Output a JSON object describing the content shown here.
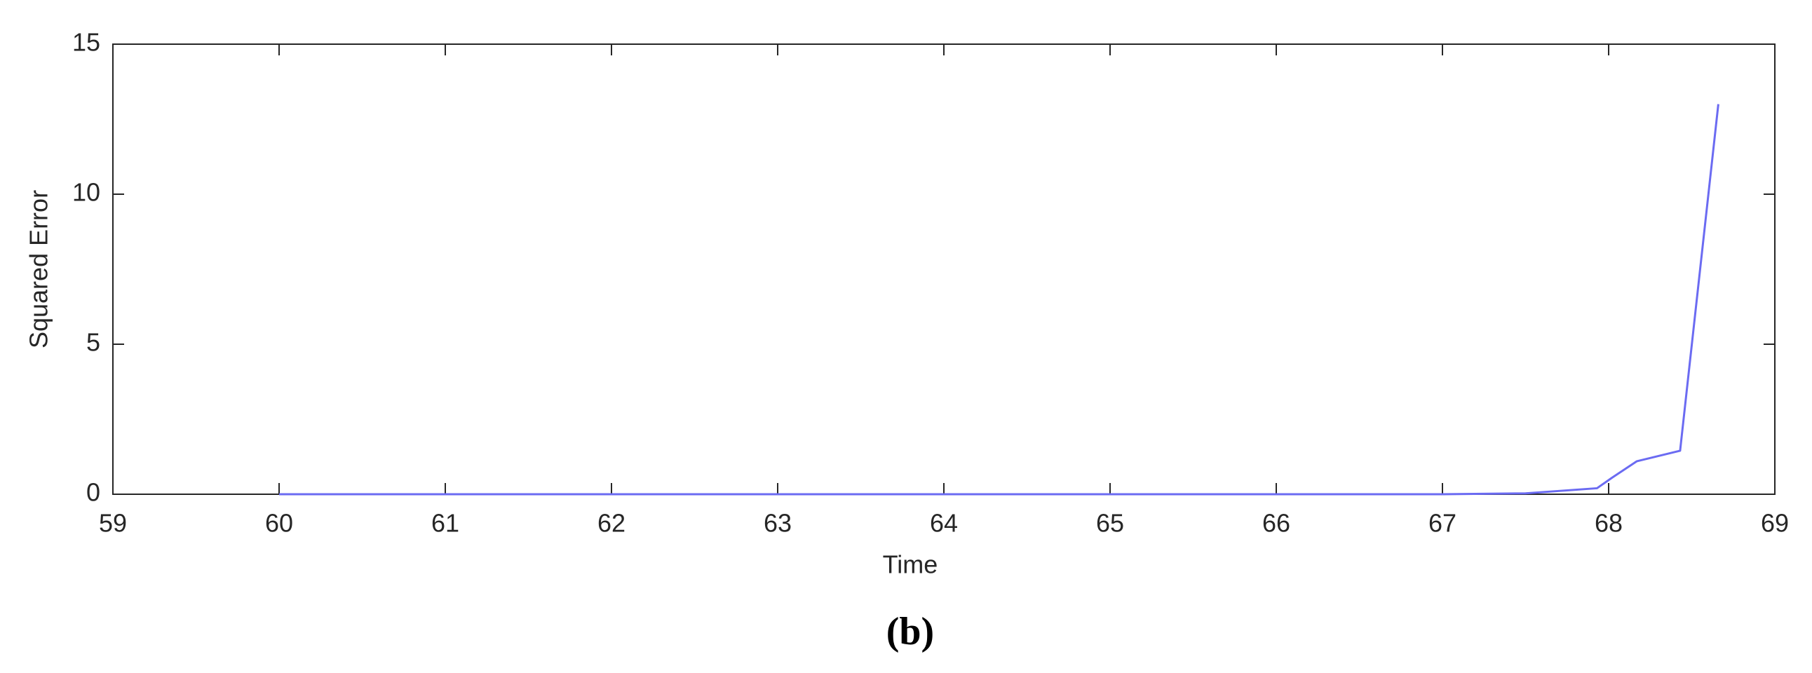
{
  "chart_data": {
    "type": "line",
    "x_label": "Time",
    "y_label": "Squared Error",
    "xlim": [
      59,
      69
    ],
    "xticks": [
      59,
      60,
      61,
      62,
      63,
      64,
      65,
      66,
      67,
      68,
      69
    ],
    "ylim": [
      0,
      15
    ],
    "yticks": [
      0,
      5,
      10,
      15
    ],
    "series": [
      {
        "color": "#6b6bf2",
        "x": [
          60,
          61,
          62,
          63,
          64,
          65,
          66,
          67,
          67.5,
          67.93,
          68.02,
          68.17,
          68.43,
          68.66
        ],
        "values": [
          0,
          0,
          0,
          0,
          0,
          0,
          0,
          0,
          0.03,
          0.2,
          0.55,
          1.1,
          1.45,
          13
        ]
      }
    ]
  },
  "caption": "(b)"
}
